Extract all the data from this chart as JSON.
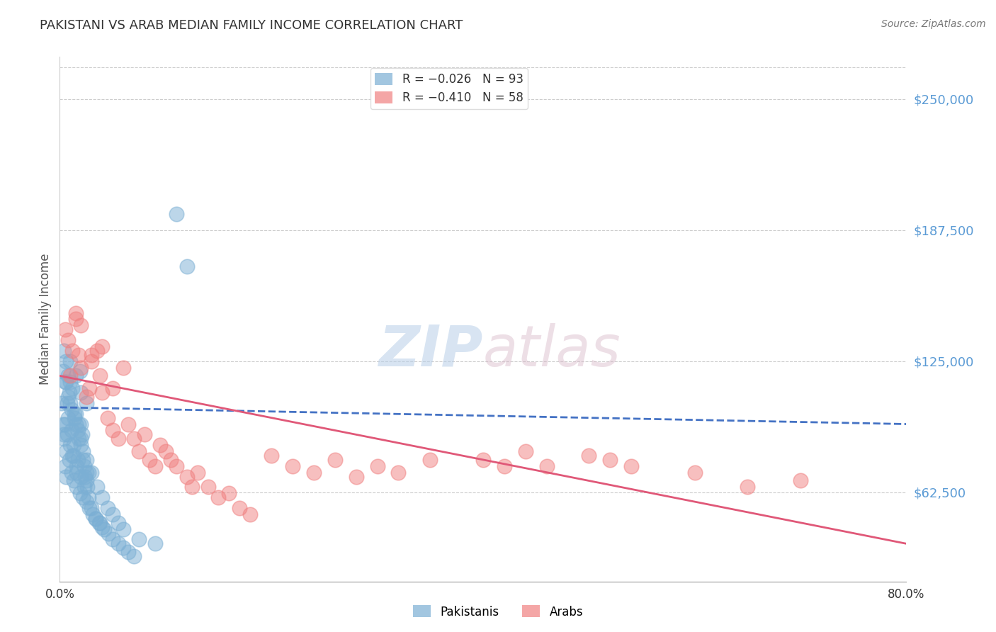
{
  "title": "PAKISTANI VS ARAB MEDIAN FAMILY INCOME CORRELATION CHART",
  "source": "Source: ZipAtlas.com",
  "ylabel": "Median Family Income",
  "xlim": [
    0.0,
    80.0
  ],
  "ylim": [
    20000,
    270000
  ],
  "yticks": [
    62500,
    125000,
    187500,
    250000
  ],
  "ytick_labels": [
    "$62,500",
    "$125,000",
    "$187,500",
    "$250,000"
  ],
  "watermark_zip": "ZIP",
  "watermark_atlas": "atlas",
  "pakistani_color": "#7bafd4",
  "arab_color": "#f08080",
  "background_color": "#ffffff",
  "grid_color": "#cccccc",
  "ytick_color": "#5b9bd5",
  "title_color": "#333333",
  "pak_trend_x": [
    0,
    80
  ],
  "pak_trend_y": [
    103000,
    95000
  ],
  "arab_trend_x": [
    0,
    80
  ],
  "arab_trend_y": [
    118000,
    38000
  ],
  "pakistani_points": [
    [
      0.3,
      95000
    ],
    [
      0.4,
      88000
    ],
    [
      0.5,
      75000
    ],
    [
      0.6,
      70000
    ],
    [
      0.7,
      105000
    ],
    [
      0.8,
      98000
    ],
    [
      0.9,
      110000
    ],
    [
      1.0,
      115000
    ],
    [
      1.1,
      92000
    ],
    [
      1.2,
      80000
    ],
    [
      1.3,
      85000
    ],
    [
      1.4,
      100000
    ],
    [
      1.5,
      95000
    ],
    [
      1.6,
      72000
    ],
    [
      1.7,
      78000
    ],
    [
      1.8,
      88000
    ],
    [
      1.9,
      120000
    ],
    [
      2.0,
      95000
    ],
    [
      2.1,
      90000
    ],
    [
      2.2,
      82000
    ],
    [
      2.3,
      75000
    ],
    [
      2.4,
      70000
    ],
    [
      2.5,
      68000
    ],
    [
      2.6,
      65000
    ],
    [
      2.7,
      72000
    ],
    [
      0.5,
      115000
    ],
    [
      0.6,
      125000
    ],
    [
      0.8,
      118000
    ],
    [
      1.0,
      105000
    ],
    [
      1.2,
      112000
    ],
    [
      1.5,
      100000
    ],
    [
      1.8,
      95000
    ],
    [
      2.0,
      88000
    ],
    [
      2.2,
      78000
    ],
    [
      2.5,
      72000
    ],
    [
      0.2,
      105000
    ],
    [
      0.4,
      90000
    ],
    [
      0.6,
      82000
    ],
    [
      0.9,
      78000
    ],
    [
      1.1,
      72000
    ],
    [
      1.3,
      68000
    ],
    [
      1.6,
      65000
    ],
    [
      1.9,
      62000
    ],
    [
      2.2,
      60000
    ],
    [
      2.5,
      58000
    ],
    [
      2.8,
      55000
    ],
    [
      3.1,
      52000
    ],
    [
      3.4,
      50000
    ],
    [
      3.7,
      48000
    ],
    [
      4.0,
      46000
    ],
    [
      0.5,
      95000
    ],
    [
      0.7,
      90000
    ],
    [
      1.0,
      85000
    ],
    [
      1.3,
      80000
    ],
    [
      1.6,
      75000
    ],
    [
      2.0,
      70000
    ],
    [
      2.3,
      65000
    ],
    [
      2.7,
      60000
    ],
    [
      3.0,
      55000
    ],
    [
      3.4,
      50000
    ],
    [
      3.8,
      48000
    ],
    [
      4.2,
      45000
    ],
    [
      4.6,
      43000
    ],
    [
      5.0,
      40000
    ],
    [
      5.5,
      38000
    ],
    [
      6.0,
      36000
    ],
    [
      6.5,
      34000
    ],
    [
      7.0,
      32000
    ],
    [
      0.3,
      120000
    ],
    [
      0.6,
      115000
    ],
    [
      0.8,
      108000
    ],
    [
      1.1,
      102000
    ],
    [
      1.4,
      98000
    ],
    [
      1.7,
      92000
    ],
    [
      2.0,
      85000
    ],
    [
      2.5,
      78000
    ],
    [
      3.0,
      72000
    ],
    [
      3.5,
      65000
    ],
    [
      4.0,
      60000
    ],
    [
      4.5,
      55000
    ],
    [
      5.0,
      52000
    ],
    [
      5.5,
      48000
    ],
    [
      6.0,
      45000
    ],
    [
      7.5,
      40000
    ],
    [
      9.0,
      38000
    ],
    [
      11.0,
      195000
    ],
    [
      12.0,
      170000
    ],
    [
      0.4,
      130000
    ],
    [
      1.0,
      125000
    ],
    [
      1.5,
      118000
    ],
    [
      2.0,
      110000
    ],
    [
      2.5,
      105000
    ]
  ],
  "arab_points": [
    [
      0.5,
      140000
    ],
    [
      0.8,
      135000
    ],
    [
      1.0,
      118000
    ],
    [
      1.2,
      130000
    ],
    [
      1.5,
      145000
    ],
    [
      1.8,
      128000
    ],
    [
      2.0,
      122000
    ],
    [
      2.5,
      108000
    ],
    [
      2.8,
      112000
    ],
    [
      3.0,
      125000
    ],
    [
      3.5,
      130000
    ],
    [
      3.8,
      118000
    ],
    [
      4.0,
      110000
    ],
    [
      4.5,
      98000
    ],
    [
      5.0,
      92000
    ],
    [
      5.5,
      88000
    ],
    [
      6.0,
      122000
    ],
    [
      6.5,
      95000
    ],
    [
      7.0,
      88000
    ],
    [
      7.5,
      82000
    ],
    [
      8.0,
      90000
    ],
    [
      8.5,
      78000
    ],
    [
      9.0,
      75000
    ],
    [
      9.5,
      85000
    ],
    [
      10.0,
      82000
    ],
    [
      10.5,
      78000
    ],
    [
      11.0,
      75000
    ],
    [
      12.0,
      70000
    ],
    [
      12.5,
      65000
    ],
    [
      13.0,
      72000
    ],
    [
      14.0,
      65000
    ],
    [
      15.0,
      60000
    ],
    [
      16.0,
      62000
    ],
    [
      17.0,
      55000
    ],
    [
      18.0,
      52000
    ],
    [
      1.5,
      148000
    ],
    [
      2.0,
      142000
    ],
    [
      3.0,
      128000
    ],
    [
      4.0,
      132000
    ],
    [
      5.0,
      112000
    ],
    [
      20.0,
      80000
    ],
    [
      22.0,
      75000
    ],
    [
      24.0,
      72000
    ],
    [
      26.0,
      78000
    ],
    [
      28.0,
      70000
    ],
    [
      30.0,
      75000
    ],
    [
      32.0,
      72000
    ],
    [
      35.0,
      78000
    ],
    [
      40.0,
      78000
    ],
    [
      42.0,
      75000
    ],
    [
      44.0,
      82000
    ],
    [
      46.0,
      75000
    ],
    [
      50.0,
      80000
    ],
    [
      52.0,
      78000
    ],
    [
      54.0,
      75000
    ],
    [
      60.0,
      72000
    ],
    [
      65.0,
      65000
    ],
    [
      70.0,
      68000
    ]
  ]
}
